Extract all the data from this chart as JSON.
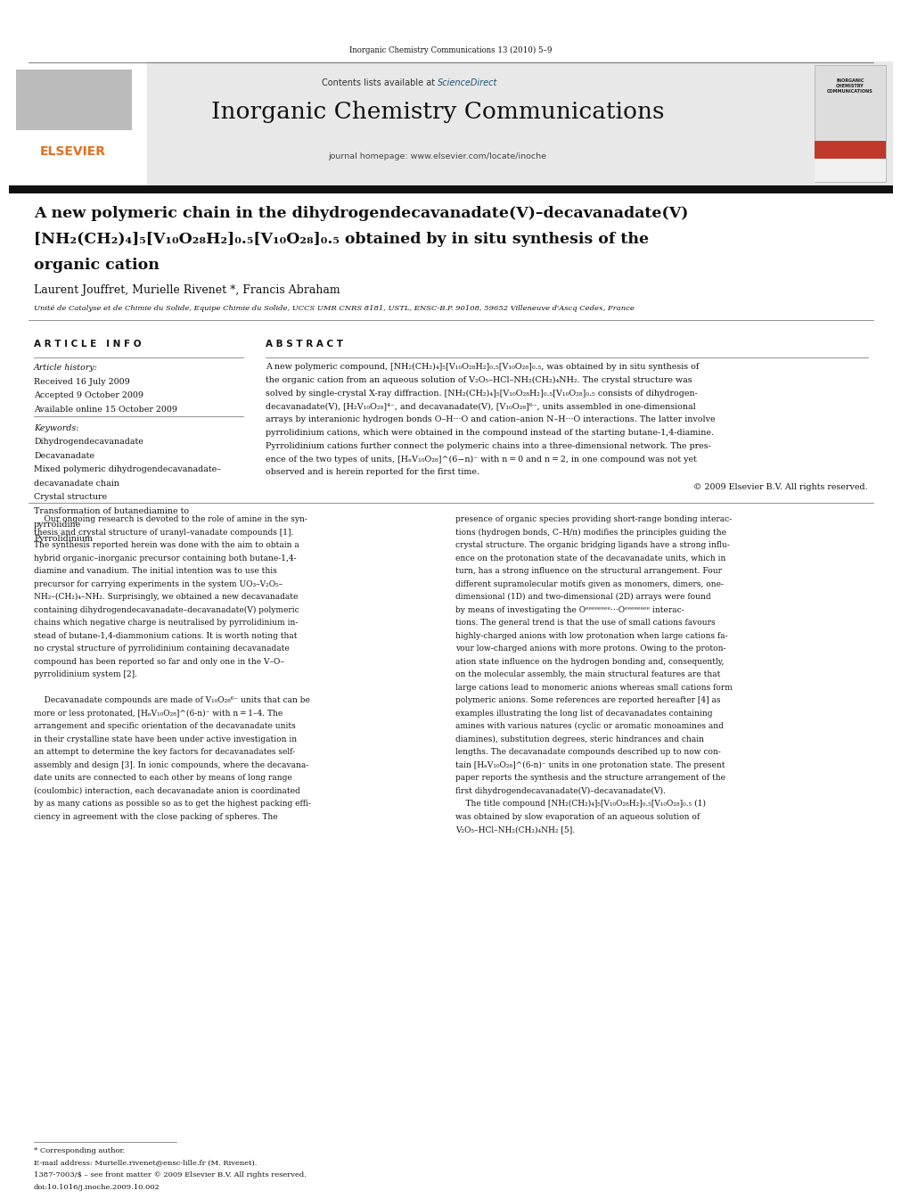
{
  "page_width": 9.92,
  "page_height": 13.23,
  "bg_color": "#ffffff",
  "journal_header": "Inorganic Chemistry Communications 13 (2010) 5–9",
  "sciencedirect_color": "#1a5276",
  "journal_name": "Inorganic Chemistry Communications",
  "journal_homepage": "journal homepage: www.elsevier.com/locate/inoche",
  "elsevier_color": "#e07020",
  "header_bg": "#e8e8e8",
  "article_title_line1": "A new polymeric chain in the dihydrogendecavanadate(V)–decavanadate(V)",
  "article_title_line2": "[NH₂(CH₂)₄]₅[V₁₀O₂₈H₂]₀.₅[V₁₀O₂₈]₀.₅ obtained by in situ synthesis of the",
  "article_title_line3": "organic cation",
  "authors": "Laurent Jouffret, Murielle Rivenet *, Francis Abraham",
  "affiliation": "Unité de Catalyse et de Chimie du Solide, Equipe Chimie du Solide, UCCS UMR CNRS 8181, USTL, ENSC-B.P. 90108, 59652 Villeneuve d'Ascq Cedex, France",
  "article_info_header": "A R T I C L E   I N F O",
  "article_history_label": "Article history:",
  "received": "Received 16 July 2009",
  "accepted": "Accepted 9 October 2009",
  "available": "Available online 15 October 2009",
  "keywords_label": "Keywords:",
  "keywords": [
    "Dihydrogendecavanadate",
    "Decavanadate",
    "Mixed polymeric dihydrogendecavanadate–",
    "decavanadate chain",
    "Crystal structure",
    "Transformation of butanediamine to",
    "pyrrolidine",
    "Pyrrolidinium"
  ],
  "abstract_header": "A B S T R A C T",
  "abstract_lines": [
    "A new polymeric compound, [NH₂(CH₂)₄]₅[V₁₀O₂₈H₂]₀.₅[V₁₀O₂₈]₀.₅, was obtained by in situ synthesis of",
    "the organic cation from an aqueous solution of V₂O₅–HCl–NH₂(CH₂)₄NH₂. The crystal structure was",
    "solved by single-crystal X-ray diffraction. [NH₂(CH₂)₄]₅[V₁₀O₂₈H₂]₀.₅[V₁₀O₂₈]₀.₅ consists of dihydrogen-",
    "decavanadate(V), [H₂V₁₀O₂₈]⁴⁻, and decavanadate(V), [V₁₀O₂₈]⁶⁻, units assembled in one-dimensional",
    "arrays by interanionic hydrogen bonds O–H···O and cation–anion N–H···O interactions. The latter involve",
    "pyrrolidinium cations, which were obtained in the compound instead of the starting butane-1,4-diamine.",
    "Pyrrolidinium cations further connect the polymeric chains into a three-dimensional network. The pres-",
    "ence of the two types of units, [HₙV₁₀O₂₈]^(6−n)⁻ with n = 0 and n = 2, in one compound was not yet",
    "observed and is herein reported for the first time."
  ],
  "copyright": "© 2009 Elsevier B.V. All rights reserved.",
  "body_col1_lines": [
    "    Our ongoing research is devoted to the role of amine in the syn-",
    "thesis and crystal structure of uranyl–vanadate compounds [1].",
    "The synthesis reported herein was done with the aim to obtain a",
    "hybrid organic–inorganic precursor containing both butane-1,4-",
    "diamine and vanadium. The initial intention was to use this",
    "precursor for carrying experiments in the system UO₃–V₂O₅–",
    "NH₂–(CH₂)₄–NH₂. Surprisingly, we obtained a new decavanadate",
    "containing dihydrogendecavanadate–decavanadate(V) polymeric",
    "chains which negative charge is neutralised by pyrrolidinium in-",
    "stead of butane-1,4-diammonium cations. It is worth noting that",
    "no crystal structure of pyrrolidinium containing decavanadate",
    "compound has been reported so far and only one in the V–O–",
    "pyrrolidinium system [2].",
    "",
    "    Decavanadate compounds are made of V₁₀O₂₈⁶⁻ units that can be",
    "more or less protonated, [HₙV₁₀O₂₈]^(6-n)⁻ with n = 1–4. The",
    "arrangement and specific orientation of the decavanadate units",
    "in their crystalline state have been under active investigation in",
    "an attempt to determine the key factors for decavanadates self-",
    "assembly and design [3]. In ionic compounds, where the decavana-",
    "date units are connected to each other by means of long range",
    "(coulombic) interaction, each decavanadate anion is coordinated",
    "by as many cations as possible so as to get the highest packing effi-",
    "ciency in agreement with the close packing of spheres. The"
  ],
  "body_col2_lines": [
    "presence of organic species providing short-range bonding interac-",
    "tions (hydrogen bonds, C–H/π) modifies the principles guiding the",
    "crystal structure. The organic bridging ligands have a strong influ-",
    "ence on the protonation state of the decavanadate units, which in",
    "turn, has a strong influence on the structural arrangement. Four",
    "different supramolecular motifs given as monomers, dimers, one-",
    "dimensional (1D) and two-dimensional (2D) arrays were found",
    "by means of investigating the Oᵉᵉᵉᵉᵉᵉᵉᵉ···Oᵉᵉᵉᵉᵉᵉᵉᵉ interac-",
    "tions. The general trend is that the use of small cations favours",
    "highly-charged anions with low protonation when large cations fa-",
    "vour low-charged anions with more protons. Owing to the proton-",
    "ation state influence on the hydrogen bonding and, consequently,",
    "on the molecular assembly, the main structural features are that",
    "large cations lead to monomeric anions whereas small cations form",
    "polymeric anions. Some references are reported hereafter [4] as",
    "examples illustrating the long list of decavanadates containing",
    "amines with various natures (cyclic or aromatic monoamines and",
    "diamines), substitution degrees, steric hindrances and chain",
    "lengths. The decavanadate compounds described up to now con-",
    "tain [HₙV₁₀O₂₈]^(6-n)⁻ units in one protonation state. The present",
    "paper reports the synthesis and the structure arrangement of the",
    "first dihydrogendecavanadate(V)–decavanadate(V).",
    "    The title compound [NH₂(CH₂)₄]₅[V₁₀O₂₈H₂]₀.₅[V₁₀O₂₈]₀.₅ (1)",
    "was obtained by slow evaporation of an aqueous solution of",
    "V₂O₅–HCl–NH₂(CH₂)₄NH₂ [5]."
  ],
  "footnote_star": "* Corresponding author.",
  "footnote_email": "E-mail address: Murielle.rivenet@ensc-lille.fr (M. Rivenet).",
  "footnote_issn": "1387-7003/$ – see front matter © 2009 Elsevier B.V. All rights reserved.",
  "footnote_doi": "doi:10.1016/j.inoche.2009.10.002"
}
